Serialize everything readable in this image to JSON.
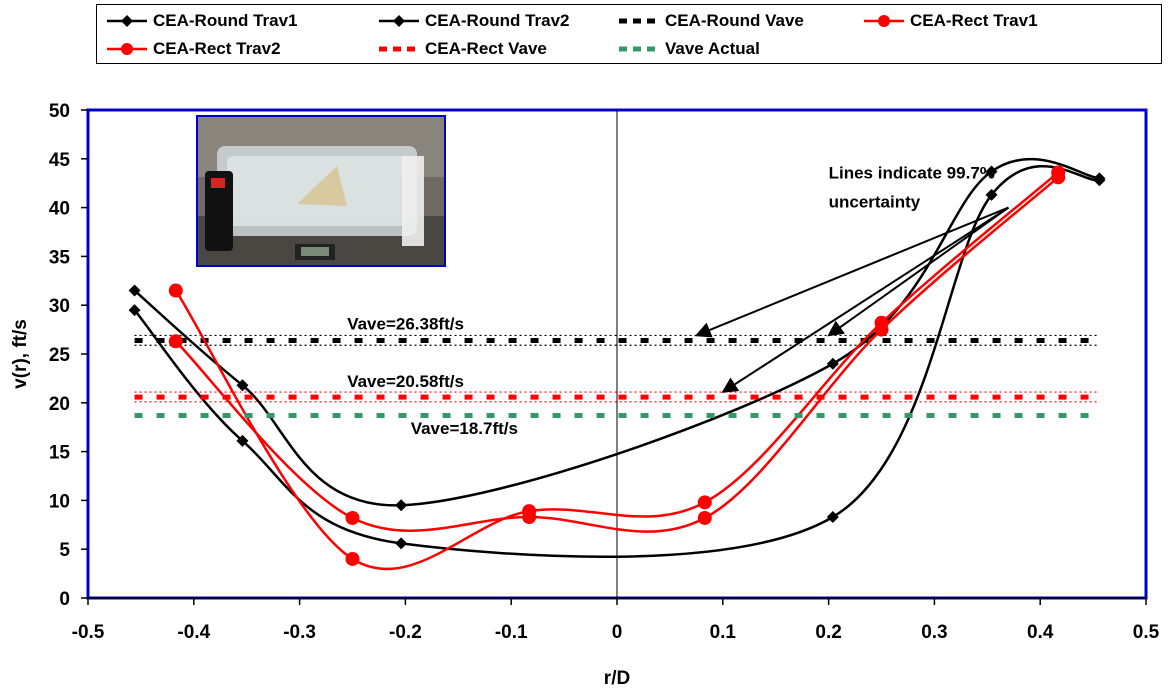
{
  "chart_data": {
    "type": "line",
    "xlabel": "r/D",
    "ylabel": "v(r), ft/s",
    "xlim": [
      -0.5,
      0.5
    ],
    "ylim": [
      0,
      50
    ],
    "x_ticks": [
      -0.5,
      -0.4,
      -0.3,
      -0.2,
      -0.1,
      0,
      0.1,
      0.2,
      0.3,
      0.4,
      0.5
    ],
    "x_tick_labels": [
      "-0.5",
      "-0.4",
      "-0.3",
      "-0.2",
      "-0.1",
      "0",
      "0.1",
      "0.2",
      "0.3",
      "0.4",
      "0.5"
    ],
    "y_ticks": [
      0,
      5,
      10,
      15,
      20,
      25,
      30,
      35,
      40,
      45,
      50
    ],
    "y_tick_labels": [
      "0",
      "5",
      "10",
      "15",
      "20",
      "25",
      "30",
      "35",
      "40",
      "45",
      "50"
    ],
    "legend_placement": "top",
    "plot_border_color": "#0000cc",
    "series": [
      {
        "name": "CEA-Round Trav1",
        "color": "#000000",
        "marker": "diamond",
        "style": "solid",
        "x": [
          -0.456,
          -0.354,
          -0.204,
          0.204,
          0.354,
          0.456
        ],
        "y": [
          31.5,
          21.8,
          9.5,
          24.0,
          43.7,
          43.0
        ]
      },
      {
        "name": "CEA-Round Trav2",
        "color": "#000000",
        "marker": "diamond",
        "style": "solid",
        "x": [
          -0.456,
          -0.354,
          -0.204,
          0.204,
          0.354,
          0.456
        ],
        "y": [
          29.5,
          16.1,
          5.6,
          8.3,
          41.3,
          42.8
        ]
      },
      {
        "name": "CEA-Round Vave",
        "color": "#000000",
        "marker": "none",
        "style": "dashed",
        "constant": 26.38
      },
      {
        "name": "CEA-Rect Trav1",
        "color": "#ff0000",
        "marker": "circle",
        "style": "solid",
        "x": [
          -0.417,
          -0.25,
          -0.083,
          0.083,
          0.25,
          0.417
        ],
        "y": [
          31.5,
          4.0,
          8.9,
          9.8,
          28.2,
          43.6
        ]
      },
      {
        "name": "CEA-Rect Trav2",
        "color": "#ff0000",
        "marker": "circle",
        "style": "solid",
        "x": [
          -0.417,
          -0.25,
          -0.083,
          0.083,
          0.25,
          0.417
        ],
        "y": [
          26.3,
          8.2,
          8.3,
          8.2,
          27.5,
          43.1
        ]
      },
      {
        "name": "CEA-Rect Vave",
        "color": "#ff0000",
        "marker": "none",
        "style": "dashed",
        "constant": 20.58
      },
      {
        "name": "Vave Actual",
        "color": "#339966",
        "marker": "none",
        "style": "dashed",
        "constant": 18.7
      }
    ],
    "uncertainty_bands": [
      {
        "color": "#000000",
        "y": [
          25.9,
          26.9
        ]
      },
      {
        "color": "#ff0000",
        "y": [
          20.1,
          21.1
        ]
      }
    ],
    "annotations": [
      {
        "text": "Vave=26.38ft/s",
        "x": -0.255,
        "y": 27.5
      },
      {
        "text": "Vave=20.58ft/s",
        "x": -0.255,
        "y": 21.6
      },
      {
        "text": "Vave=18.7ft/s",
        "x": -0.195,
        "y": 16.8
      },
      {
        "text": "Lines indicate 99.7%",
        "x": 0.2,
        "y": 43.0
      },
      {
        "text": "uncertainty",
        "x": 0.2,
        "y": 40.0
      }
    ]
  }
}
